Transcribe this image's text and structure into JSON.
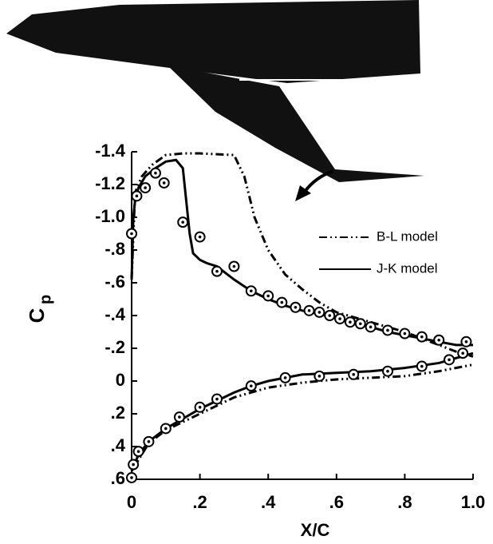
{
  "chart_data": {
    "type": "line",
    "xlabel": "X/C",
    "ylabel": "C",
    "ylabel_subscript": "p",
    "xlim": [
      0,
      1.0
    ],
    "ylim": [
      0.6,
      -1.4
    ],
    "xticks": [
      0,
      {
        "value": 0.2,
        "label": ".2"
      },
      {
        "value": 0.4,
        "label": ".4"
      },
      {
        "value": 0.6,
        "label": ".6"
      },
      {
        "value": 0.8,
        "label": ".8"
      },
      {
        "value": 1.0,
        "label": "1.0"
      }
    ],
    "yticks": [
      -1.4,
      -1.2,
      {
        "value": -1.0,
        "label": "-1.0"
      },
      {
        "value": -0.8,
        "label": "-.8"
      },
      {
        "value": -0.6,
        "label": "-.6"
      },
      {
        "value": -0.4,
        "label": "-.4"
      },
      {
        "value": -0.2,
        "label": "-.2"
      },
      0,
      {
        "value": 0.2,
        "label": ".2"
      },
      {
        "value": 0.4,
        "label": ".4"
      },
      {
        "value": 0.6,
        "label": ".6"
      }
    ],
    "series": [
      {
        "name": "B-L model",
        "color": "#000000",
        "dash": "10 4 2 4 2 4",
        "x": [
          0,
          0.01,
          0.03,
          0.06,
          0.1,
          0.15,
          0.2,
          0.3,
          0.33,
          0.36,
          0.4,
          0.45,
          0.5,
          0.55,
          0.6,
          0.7,
          0.8,
          0.9,
          0.95,
          1.0,
          null,
          0,
          0.05,
          0.1,
          0.2,
          0.3,
          0.4,
          0.5,
          0.6,
          0.7,
          0.8,
          0.9,
          1.0
        ],
        "values": [
          -0.62,
          -1.15,
          -1.25,
          -1.32,
          -1.38,
          -1.39,
          -1.39,
          -1.38,
          -1.25,
          -1.0,
          -0.8,
          -0.65,
          -0.56,
          -0.48,
          -0.42,
          -0.36,
          -0.3,
          -0.22,
          -0.18,
          -0.15,
          null,
          0.55,
          0.38,
          0.3,
          0.2,
          0.1,
          0.04,
          0.01,
          -0.01,
          -0.02,
          -0.03,
          -0.06,
          -0.1
        ]
      },
      {
        "name": "J-K model",
        "color": "#000000",
        "x": [
          0,
          0.005,
          0.01,
          0.02,
          0.04,
          0.07,
          0.1,
          0.13,
          0.15,
          0.16,
          0.17,
          0.18,
          0.2,
          0.22,
          0.25,
          0.3,
          0.35,
          0.4,
          0.45,
          0.5,
          0.55,
          0.6,
          0.65,
          0.7,
          0.75,
          0.8,
          0.85,
          0.9,
          0.95,
          1.0,
          null,
          0,
          0.02,
          0.05,
          0.1,
          0.15,
          0.2,
          0.25,
          0.3,
          0.35,
          0.4,
          0.5,
          0.6,
          0.7,
          0.8,
          0.9,
          0.95,
          1.0
        ],
        "values": [
          -0.62,
          -1.0,
          -1.1,
          -1.18,
          -1.25,
          -1.3,
          -1.34,
          -1.35,
          -1.3,
          -1.1,
          -0.9,
          -0.78,
          -0.74,
          -0.72,
          -0.7,
          -0.62,
          -0.55,
          -0.5,
          -0.46,
          -0.43,
          -0.41,
          -0.38,
          -0.35,
          -0.33,
          -0.3,
          -0.28,
          -0.26,
          -0.24,
          -0.22,
          -0.22,
          null,
          0.55,
          0.45,
          0.37,
          0.29,
          0.23,
          0.17,
          0.12,
          0.07,
          0.03,
          0.0,
          -0.04,
          -0.05,
          -0.06,
          -0.08,
          -0.11,
          -0.14,
          -0.17
        ]
      },
      {
        "type": "scatter",
        "color": "#000000",
        "x": [
          0,
          0.015,
          0.04,
          0.07,
          0.095,
          0.15,
          0.2,
          0.25,
          0.3,
          0.35,
          0.4,
          0.44,
          0.48,
          0.52,
          0.55,
          0.58,
          0.61,
          0.64,
          0.67,
          0.7,
          0.75,
          0.8,
          0.85,
          0.9,
          0.98,
          0,
          0.005,
          0.02,
          0.05,
          0.1,
          0.14,
          0.2,
          0.25,
          0.35,
          0.45,
          0.55,
          0.65,
          0.75,
          0.85,
          0.93,
          0.97
        ],
        "values": [
          -0.9,
          -1.13,
          -1.18,
          -1.27,
          -1.21,
          -0.97,
          -0.88,
          -0.67,
          -0.7,
          -0.55,
          -0.52,
          -0.48,
          -0.45,
          -0.43,
          -0.42,
          -0.4,
          -0.38,
          -0.36,
          -0.35,
          -0.33,
          -0.31,
          -0.29,
          -0.27,
          -0.25,
          -0.24,
          0.59,
          0.51,
          0.43,
          0.37,
          0.29,
          0.22,
          0.16,
          0.11,
          0.03,
          -0.02,
          -0.03,
          -0.04,
          -0.06,
          -0.09,
          -0.13,
          -0.17
        ]
      }
    ]
  }
}
